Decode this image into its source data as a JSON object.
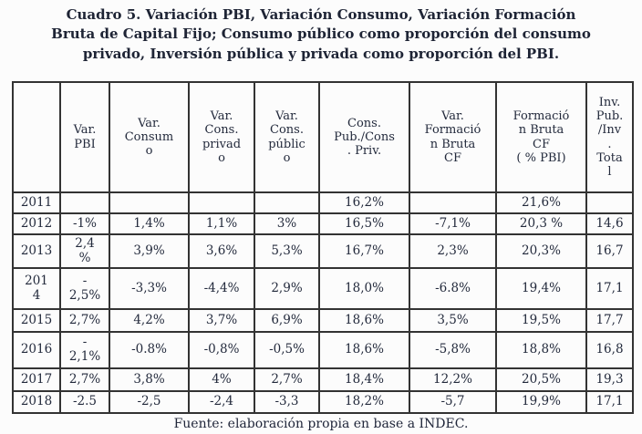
{
  "title": "Cuadro 5. Variación PBI, Variación Consumo, Variación Formación\nBruta de Capital Fijo; Consumo público como proporción del consumo\nprivado, Inversión pública y privada como proporción del PBI.",
  "table": {
    "headers": [
      "",
      "Var.\nPBI",
      "Var.\nConsum\no",
      "Var.\nCons.\nprivad\no",
      "Var.\nCons.\npúblic\no",
      "Cons.\nPub./Cons\n. Priv.",
      "Var.\nFormació\nn Bruta\nCF",
      "Formació\nn Bruta\nCF\n( % PBI)",
      "Inv.\nPub.\n/Inv\n.\nTota\nl"
    ],
    "rows": [
      {
        "year": "2011",
        "cells": [
          "",
          "",
          "",
          "",
          "16,2%",
          "",
          "21,6%",
          ""
        ]
      },
      {
        "year": "2012",
        "cells": [
          "-1%",
          "1,4%",
          "1,1%",
          "3%",
          "16,5%",
          "-7,1%",
          "20,3 %",
          "14,6"
        ]
      },
      {
        "year": "2013",
        "cells": [
          "2,4\n%",
          "3,9%",
          "3,6%",
          "5,3%",
          "16,7%",
          "2,3%",
          "20,3%",
          "16,7"
        ]
      },
      {
        "year": "201\n4",
        "cells": [
          "-\n2,5%",
          "-3,3%",
          "-4,4%",
          "2,9%",
          "18,0%",
          "-6.8%",
          "19,4%",
          "17,1"
        ]
      },
      {
        "year": "2015",
        "cells": [
          "2,7%",
          "4,2%",
          "3,7%",
          "6,9%",
          "18,6%",
          "3,5%",
          "19,5%",
          "17,7"
        ]
      },
      {
        "year": "2016",
        "cells": [
          "-\n2,1%",
          "-0.8%",
          "-0,8%",
          "-0,5%",
          "18,6%",
          "-5,8%",
          "18,8%",
          "16,8"
        ]
      },
      {
        "year": "2017",
        "cells": [
          "2,7%",
          "3,8%",
          "4%",
          "2,7%",
          "18,4%",
          "12,2%",
          "20,5%",
          "19,3"
        ]
      },
      {
        "year": "2018",
        "cells": [
          "-2.5",
          "-2,5",
          "-2,4",
          "-3,3",
          "18,2%",
          "-5,7",
          "19,9%",
          "17,1"
        ]
      }
    ]
  },
  "footer": {
    "source": "Fuente: elaboración propia en base a INDEC."
  },
  "colors": {
    "text": "#222838",
    "border": "#333333",
    "background": "#fcfcfc"
  }
}
